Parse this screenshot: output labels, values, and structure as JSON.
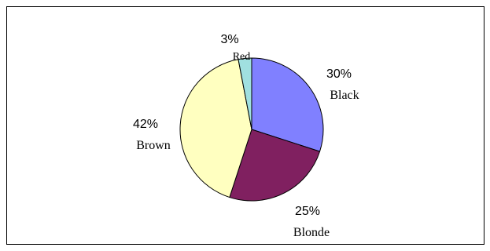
{
  "chart_data": {
    "type": "pie",
    "title": "",
    "slices": [
      {
        "label": "Black",
        "percent_label": "30%",
        "value": 30,
        "color": "#8080ff"
      },
      {
        "label": "Blonde",
        "percent_label": "25%",
        "value": 25,
        "color": "#802060"
      },
      {
        "label": "Brown",
        "percent_label": "42%",
        "value": 42,
        "color": "#ffffc0"
      },
      {
        "label": "Red",
        "percent_label": "3%",
        "value": 3,
        "color": "#a0e0e0"
      }
    ],
    "start_angle_deg": 0,
    "direction": "clockwise",
    "legend": "none",
    "slice_outline_color": "#000000"
  }
}
